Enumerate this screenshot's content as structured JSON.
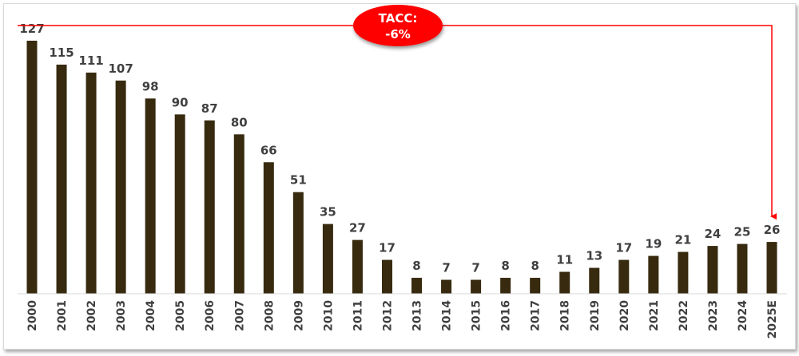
{
  "chart_data": {
    "type": "bar",
    "title": "",
    "xlabel": "",
    "ylabel": "",
    "categories": [
      "2000",
      "2001",
      "2002",
      "2003",
      "2004",
      "2005",
      "2006",
      "2007",
      "2008",
      "2009",
      "2010",
      "2011",
      "2012",
      "2013",
      "2014",
      "2015",
      "2016",
      "2017",
      "2018",
      "2019",
      "2020",
      "2021",
      "2022",
      "2023",
      "2024",
      "2025E"
    ],
    "values": [
      127,
      115,
      111,
      107,
      98,
      90,
      87,
      80,
      66,
      51,
      35,
      27,
      17,
      8,
      7,
      7,
      8,
      8,
      11,
      13,
      17,
      19,
      21,
      24,
      25,
      26
    ],
    "ylim": [
      0,
      127
    ],
    "grid": false,
    "data_labels": true,
    "bar_color": "#372a0f",
    "annotation": {
      "line1": "TACC:",
      "line2": "-6%",
      "from": "2000",
      "to": "2025E",
      "color": "#ff0000"
    }
  }
}
